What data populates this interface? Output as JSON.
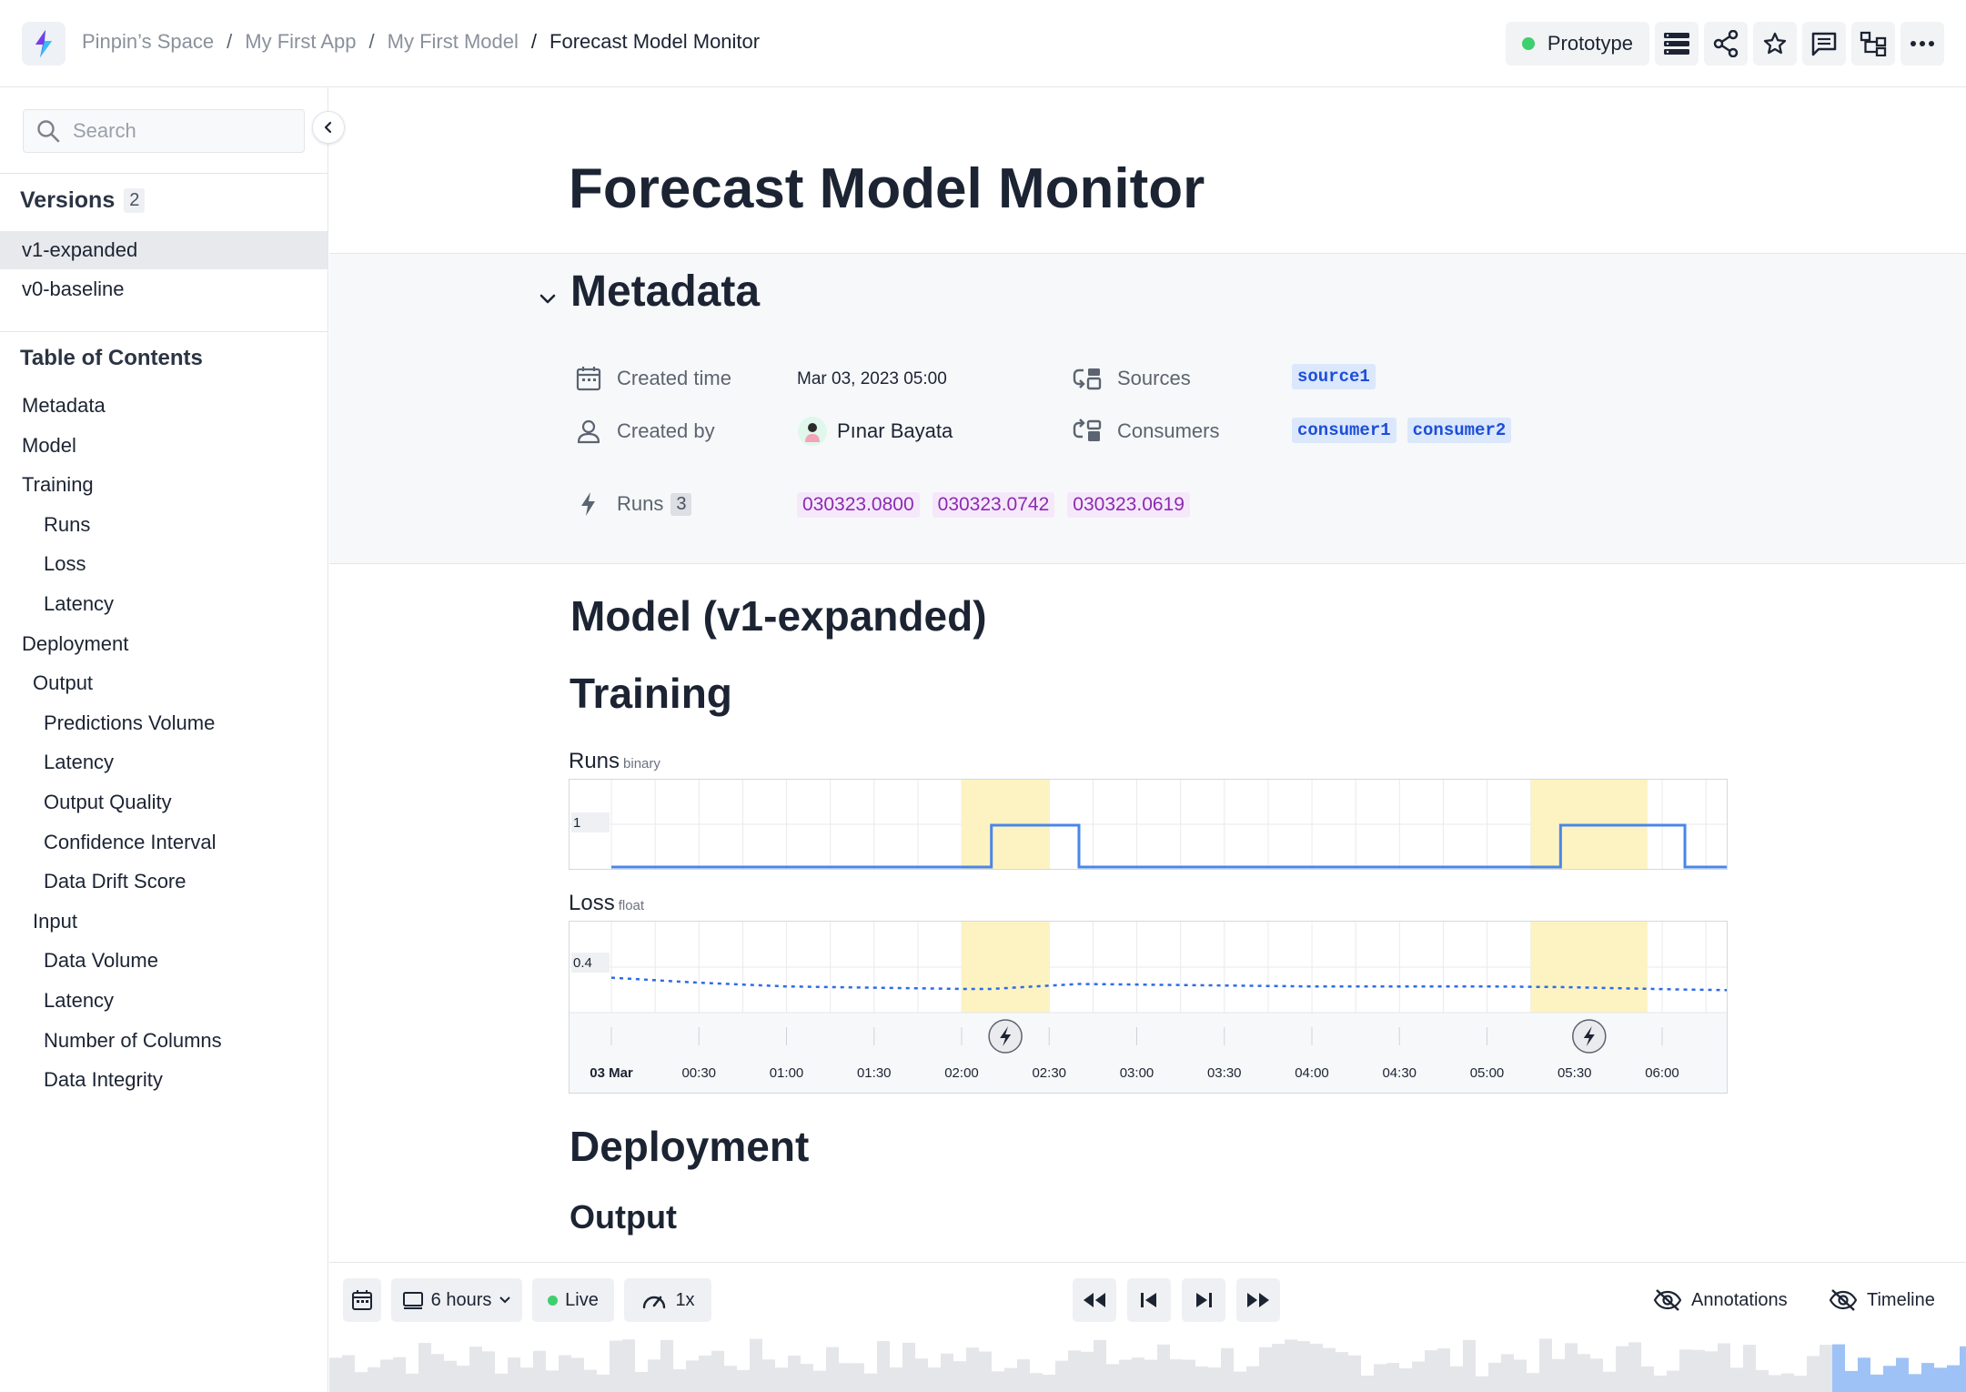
{
  "topbar": {
    "breadcrumb": [
      "Pinpin’s Space",
      "My First App",
      "My First Model",
      "Forecast Model Monitor"
    ],
    "status_label": "Prototype",
    "status_color": "#3ecf6e",
    "actions": [
      "list-icon",
      "share-icon",
      "star-icon",
      "comment-icon",
      "hierarchy-icon",
      "more-icon"
    ]
  },
  "sidebar": {
    "search_placeholder": "Search",
    "versions_title": "Versions",
    "versions_count": "2",
    "versions": [
      "v1-expanded",
      "v0-baseline"
    ],
    "active_version": "v1-expanded",
    "toc_title": "Table of Contents",
    "toc": [
      {
        "label": "Metadata",
        "level": 0
      },
      {
        "label": "Model",
        "level": 0
      },
      {
        "label": "Training",
        "level": 0
      },
      {
        "label": "Runs",
        "level": 2
      },
      {
        "label": "Loss",
        "level": 2
      },
      {
        "label": "Latency",
        "level": 2
      },
      {
        "label": "Deployment",
        "level": 0
      },
      {
        "label": "Output",
        "level": 1
      },
      {
        "label": "Predictions Volume",
        "level": 2
      },
      {
        "label": "Latency",
        "level": 2
      },
      {
        "label": "Output Quality",
        "level": 2
      },
      {
        "label": "Confidence Interval",
        "level": 2
      },
      {
        "label": "Data Drift Score",
        "level": 2
      },
      {
        "label": "Input",
        "level": 1
      },
      {
        "label": "Data Volume",
        "level": 2
      },
      {
        "label": "Latency",
        "level": 2
      },
      {
        "label": "Number of Columns",
        "level": 2
      },
      {
        "label": "Data Integrity",
        "level": 2
      }
    ]
  },
  "main": {
    "title": "Forecast Model Monitor",
    "metadata": {
      "heading": "Metadata",
      "created_time_label": "Created time",
      "created_time": "Mar 03, 2023 05:00",
      "created_by_label": "Created by",
      "created_by": "Pınar Bayata",
      "runs_label": "Runs",
      "runs_count": "3",
      "runs": [
        "030323.0800",
        "030323.0742",
        "030323.0619"
      ],
      "sources_label": "Sources",
      "sources": [
        "source1"
      ],
      "consumers_label": "Consumers",
      "consumers": [
        "consumer1",
        "consumer2"
      ]
    },
    "model_heading": "Model (v1-expanded)",
    "training_heading": "Training",
    "deployment_heading": "Deployment",
    "output_heading": "Output"
  },
  "chart_data": [
    {
      "type": "line",
      "title": "Runs",
      "subtitle": "binary",
      "ytick": "1",
      "x": [
        "03 Mar",
        "00:30",
        "01:00",
        "01:30",
        "02:00",
        "02:30",
        "03:00",
        "03:30",
        "04:00",
        "04:30",
        "05:00",
        "05:30",
        "06:00"
      ],
      "highlight_ranges": [
        [
          "02:00",
          "02:30"
        ],
        [
          "05:15",
          "05:55"
        ]
      ],
      "series": [
        {
          "values_desc": "step",
          "points": [
            [
              0,
              0
            ],
            [
              2.17,
              0
            ],
            [
              2.17,
              1
            ],
            [
              2.67,
              1
            ],
            [
              2.67,
              0
            ],
            [
              5.42,
              0
            ],
            [
              5.42,
              1
            ],
            [
              6.13,
              1
            ],
            [
              6.13,
              0
            ],
            [
              6.6,
              0
            ]
          ]
        }
      ],
      "line_color": "#4a86e8",
      "highlight_color": "#fdf3c2"
    },
    {
      "type": "line",
      "title": "Loss",
      "subtitle": "float",
      "ytick": "0.4",
      "x": [
        "03 Mar",
        "00:30",
        "01:00",
        "01:30",
        "02:00",
        "02:30",
        "03:00",
        "03:30",
        "04:00",
        "04:30",
        "05:00",
        "05:30",
        "06:00"
      ],
      "highlight_ranges": [
        [
          "02:00",
          "02:30"
        ],
        [
          "05:15",
          "05:55"
        ]
      ],
      "series": [
        {
          "style": "dashed",
          "points": [
            [
              0,
              0.28
            ],
            [
              0.5,
              0.24
            ],
            [
              1.0,
              0.21
            ],
            [
              1.5,
              0.2
            ],
            [
              2.0,
              0.19
            ],
            [
              2.17,
              0.19
            ],
            [
              2.67,
              0.23
            ],
            [
              3.0,
              0.225
            ],
            [
              4.0,
              0.21
            ],
            [
              5.0,
              0.21
            ],
            [
              5.42,
              0.205
            ],
            [
              6.13,
              0.185
            ],
            [
              6.4,
              0.18
            ],
            [
              6.6,
              0.19
            ]
          ]
        }
      ],
      "line_color": "#2e6be6",
      "annotations_at": [
        "02:15",
        "05:35"
      ]
    }
  ],
  "player": {
    "range_label": "6 hours",
    "live_label": "Live",
    "speed_label": "1x",
    "annotations_label": "Annotations",
    "timeline_label": "Timeline"
  }
}
